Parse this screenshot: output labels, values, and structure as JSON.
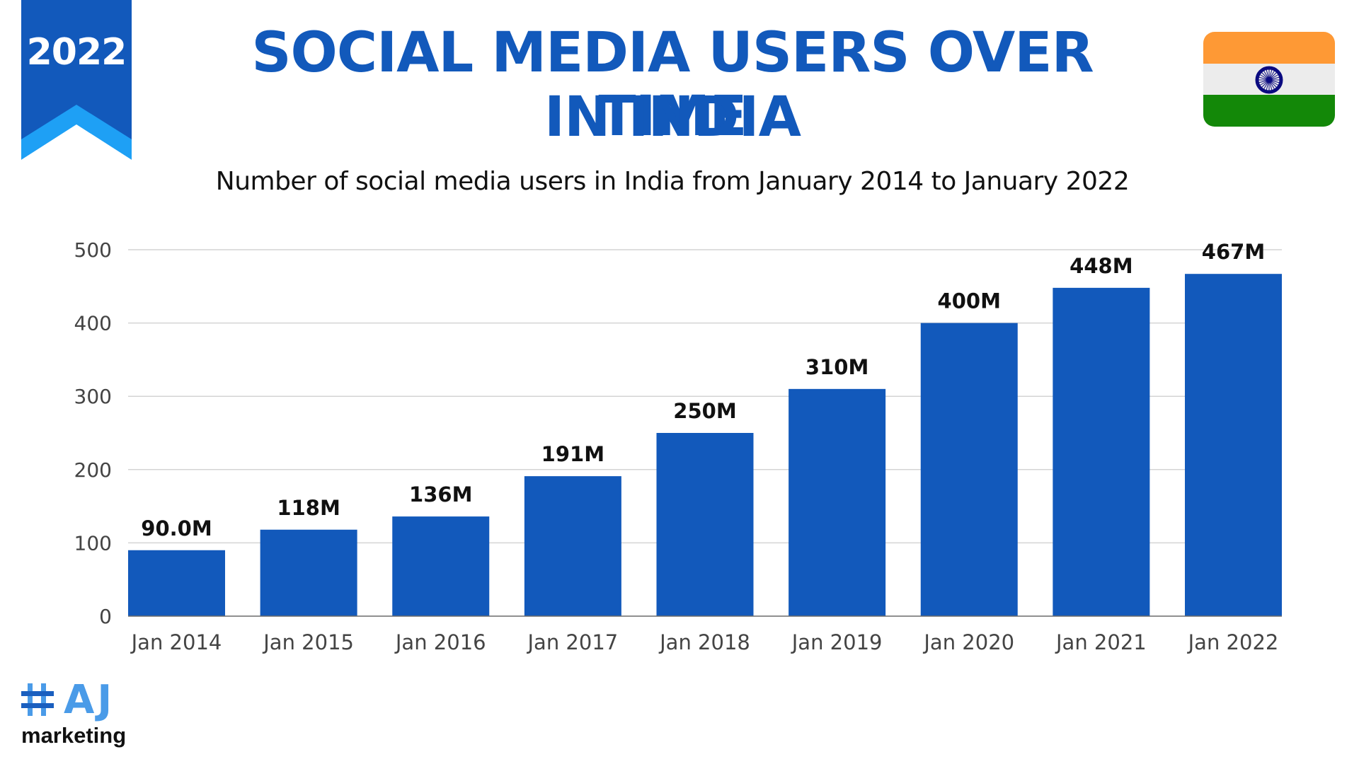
{
  "badge": {
    "year": "2022",
    "colors": {
      "dark": "#1259bb",
      "light": "#1ea0f5"
    }
  },
  "header": {
    "title_line1": "SOCIAL MEDIA USERS OVER TIME",
    "title_line2": "IN INDIA",
    "subtitle": "Number of social media users in India from January 2014 to January 2022"
  },
  "flag": {
    "country": "India",
    "icon": "india-flag-icon",
    "colors": {
      "saffron": "#fe9935",
      "white": "#ececec",
      "green": "#138808",
      "chakra": "#0a0a80"
    }
  },
  "logo": {
    "hash": "#",
    "letters": "AJ",
    "text": "marketing",
    "colors": {
      "hash": "#1a5fbf",
      "letters": "#4a9be8"
    }
  },
  "chart_data": {
    "type": "bar",
    "title": "SOCIAL MEDIA USERS OVER TIME IN INDIA",
    "subtitle": "Number of social media users in India from January 2014 to January 2022",
    "xlabel": "",
    "ylabel": "",
    "categories": [
      "Jan 2014",
      "Jan 2015",
      "Jan 2016",
      "Jan 2017",
      "Jan 2018",
      "Jan 2019",
      "Jan 2020",
      "Jan 2021",
      "Jan 2022"
    ],
    "values": [
      90,
      118,
      136,
      191,
      250,
      310,
      400,
      448,
      467
    ],
    "data_labels": [
      "90.0M",
      "118M",
      "136M",
      "191M",
      "250M",
      "310M",
      "400M",
      "448M",
      "467M"
    ],
    "units": "millions",
    "ylim": [
      0,
      500
    ],
    "yticks": [
      0,
      100,
      200,
      300,
      400,
      500
    ],
    "grid": true,
    "legend": "none",
    "bar_color": "#1259bb"
  }
}
